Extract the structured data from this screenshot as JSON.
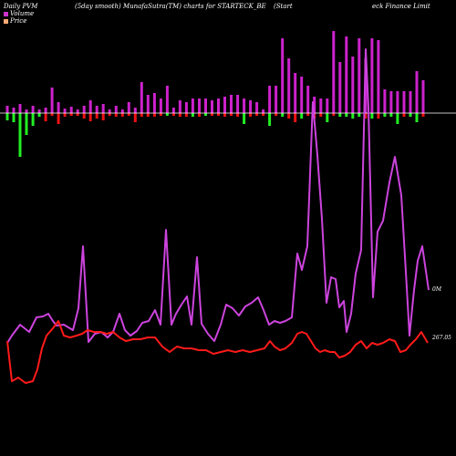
{
  "header": {
    "left": "Daily PVM",
    "mid": "(5day smooth) MunafaSutra(TM) charts for STARTECK_BE",
    "right1": "(Start",
    "right2": "eck Finance  Limit"
  },
  "legend": [
    {
      "label": "Volume",
      "color": "#cc33cc"
    },
    {
      "label": "Price",
      "color": "#ffaa77"
    }
  ],
  "axis": {
    "volume_zero_label": "0M",
    "price_label": "267.05"
  },
  "colors": {
    "volume_up": "#cc22cc",
    "volume_down_green": "#22ee22",
    "volume_down_red": "#ee1111",
    "volume_line": "#cc44dd",
    "price_line": "#ff1a1a",
    "baseline": "#ffffff"
  },
  "chart_data": {
    "type": "bar",
    "bars": [
      {
        "up": 8,
        "down": 8,
        "color": "green"
      },
      {
        "up": 6,
        "down": 10,
        "color": "green"
      },
      {
        "up": 10,
        "down": 48,
        "color": "green"
      },
      {
        "up": 4,
        "down": 24,
        "color": "green"
      },
      {
        "up": 8,
        "down": 14,
        "color": "green"
      },
      {
        "up": 4,
        "down": 4,
        "color": "green"
      },
      {
        "up": 6,
        "down": 9,
        "color": "red"
      },
      {
        "up": 28,
        "down": 3,
        "color": "red"
      },
      {
        "up": 12,
        "down": 12,
        "color": "red"
      },
      {
        "up": 5,
        "down": 4,
        "color": "red"
      },
      {
        "up": 7,
        "down": 3,
        "color": "red"
      },
      {
        "up": 4,
        "down": 3,
        "color": "red"
      },
      {
        "up": 8,
        "down": 6,
        "color": "red"
      },
      {
        "up": 14,
        "down": 9,
        "color": "red"
      },
      {
        "up": 8,
        "down": 6,
        "color": "red"
      },
      {
        "up": 10,
        "down": 8,
        "color": "red"
      },
      {
        "up": 4,
        "down": 3,
        "color": "red"
      },
      {
        "up": 8,
        "down": 4,
        "color": "red"
      },
      {
        "up": 4,
        "down": 4,
        "color": "red"
      },
      {
        "up": 12,
        "down": 3,
        "color": "red"
      },
      {
        "up": 6,
        "down": 10,
        "color": "red"
      },
      {
        "up": 34,
        "down": 4,
        "color": "red"
      },
      {
        "up": 20,
        "down": 4,
        "color": "red"
      },
      {
        "up": 22,
        "down": 4,
        "color": "red"
      },
      {
        "up": 16,
        "down": 3,
        "color": "red"
      },
      {
        "up": 30,
        "down": 3,
        "color": "green"
      },
      {
        "up": 6,
        "down": 3,
        "color": "red"
      },
      {
        "up": 14,
        "down": 4,
        "color": "red"
      },
      {
        "up": 12,
        "down": 4,
        "color": "red"
      },
      {
        "up": 16,
        "down": 4,
        "color": "green"
      },
      {
        "up": 16,
        "down": 4,
        "color": "red"
      },
      {
        "up": 16,
        "down": 3,
        "color": "green"
      },
      {
        "up": 14,
        "down": 3,
        "color": "red"
      },
      {
        "up": 16,
        "down": 3,
        "color": "red"
      },
      {
        "up": 18,
        "down": 4,
        "color": "red"
      },
      {
        "up": 20,
        "down": 3,
        "color": "red"
      },
      {
        "up": 20,
        "down": 4,
        "color": "red"
      },
      {
        "up": 16,
        "down": 12,
        "color": "green"
      },
      {
        "up": 14,
        "down": 4,
        "color": "red"
      },
      {
        "up": 12,
        "down": 3,
        "color": "red"
      },
      {
        "up": 4,
        "down": 3,
        "color": "red"
      },
      {
        "up": 30,
        "down": 14,
        "color": "green"
      },
      {
        "up": 30,
        "down": 3,
        "color": "red"
      },
      {
        "up": 82,
        "down": 4,
        "color": "green"
      },
      {
        "up": 60,
        "down": 6,
        "color": "red"
      },
      {
        "up": 44,
        "down": 10,
        "color": "red"
      },
      {
        "up": 40,
        "down": 6,
        "color": "green"
      },
      {
        "up": 30,
        "down": 3,
        "color": "red"
      },
      {
        "up": 18,
        "down": 6,
        "color": "red"
      },
      {
        "up": 16,
        "down": 4,
        "color": "red"
      },
      {
        "up": 16,
        "down": 10,
        "color": "green"
      },
      {
        "up": 90,
        "down": 3,
        "color": "red"
      },
      {
        "up": 56,
        "down": 4,
        "color": "green"
      },
      {
        "up": 84,
        "down": 4,
        "color": "green"
      },
      {
        "up": 62,
        "down": 6,
        "color": "green"
      },
      {
        "up": 82,
        "down": 4,
        "color": "green"
      },
      {
        "up": 60,
        "down": 6,
        "color": "red"
      },
      {
        "up": 82,
        "down": 6,
        "color": "green"
      },
      {
        "up": 80,
        "down": 6,
        "color": "red"
      },
      {
        "up": 26,
        "down": 4,
        "color": "green"
      },
      {
        "up": 24,
        "down": 4,
        "color": "green"
      },
      {
        "up": 24,
        "down": 12,
        "color": "green"
      },
      {
        "up": 24,
        "down": 4,
        "color": "red"
      },
      {
        "up": 24,
        "down": 4,
        "color": "green"
      },
      {
        "up": 46,
        "down": 10,
        "color": "green"
      },
      {
        "up": 36,
        "down": 4,
        "color": "red"
      }
    ],
    "volume_line": [
      [
        8,
        376
      ],
      [
        13,
        368
      ],
      [
        22,
        356
      ],
      [
        32,
        364
      ],
      [
        40,
        348
      ],
      [
        47,
        347
      ],
      [
        53,
        344
      ],
      [
        58,
        352
      ],
      [
        62,
        357
      ],
      [
        70,
        356
      ],
      [
        80,
        362
      ],
      [
        86,
        338
      ],
      [
        91,
        270
      ],
      [
        97,
        375
      ],
      [
        104,
        366
      ],
      [
        111,
        364
      ],
      [
        118,
        370
      ],
      [
        124,
        364
      ],
      [
        131,
        344
      ],
      [
        137,
        362
      ],
      [
        143,
        368
      ],
      [
        150,
        363
      ],
      [
        156,
        354
      ],
      [
        163,
        352
      ],
      [
        170,
        340
      ],
      [
        176,
        356
      ],
      [
        182,
        252
      ],
      [
        188,
        356
      ],
      [
        193,
        344
      ],
      [
        199,
        334
      ],
      [
        205,
        325
      ],
      [
        210,
        356
      ],
      [
        216,
        282
      ],
      [
        221,
        355
      ],
      [
        228,
        366
      ],
      [
        235,
        374
      ],
      [
        242,
        356
      ],
      [
        248,
        334
      ],
      [
        255,
        338
      ],
      [
        262,
        346
      ],
      [
        269,
        336
      ],
      [
        276,
        332
      ],
      [
        283,
        326
      ],
      [
        289,
        340
      ],
      [
        295,
        356
      ],
      [
        301,
        352
      ],
      [
        307,
        354
      ],
      [
        313,
        352
      ],
      [
        320,
        348
      ],
      [
        326,
        278
      ],
      [
        331,
        296
      ],
      [
        337,
        270
      ],
      [
        343,
        112
      ],
      [
        348,
        170
      ],
      [
        353,
        240
      ],
      [
        358,
        332
      ],
      [
        363,
        304
      ],
      [
        368,
        306
      ],
      [
        372,
        337
      ],
      [
        377,
        330
      ],
      [
        380,
        364
      ],
      [
        385,
        344
      ],
      [
        390,
        300
      ],
      [
        396,
        274
      ],
      [
        401,
        54
      ],
      [
        404,
        118
      ],
      [
        409,
        326
      ],
      [
        414,
        254
      ],
      [
        420,
        242
      ],
      [
        427,
        200
      ],
      [
        433,
        172
      ],
      [
        440,
        214
      ],
      [
        445,
        298
      ],
      [
        449,
        368
      ],
      [
        454,
        318
      ],
      [
        458,
        286
      ],
      [
        463,
        270
      ],
      [
        470,
        318
      ]
    ],
    "price_line": [
      [
        8,
        374
      ],
      [
        13,
        418
      ],
      [
        20,
        414
      ],
      [
        28,
        420
      ],
      [
        36,
        418
      ],
      [
        41,
        405
      ],
      [
        46,
        382
      ],
      [
        51,
        368
      ],
      [
        58,
        360
      ],
      [
        64,
        352
      ],
      [
        70,
        368
      ],
      [
        77,
        370
      ],
      [
        84,
        368
      ],
      [
        90,
        366
      ],
      [
        96,
        362
      ],
      [
        103,
        364
      ],
      [
        110,
        364
      ],
      [
        117,
        366
      ],
      [
        124,
        364
      ],
      [
        131,
        370
      ],
      [
        138,
        374
      ],
      [
        146,
        372
      ],
      [
        154,
        372
      ],
      [
        162,
        370
      ],
      [
        170,
        370
      ],
      [
        178,
        380
      ],
      [
        186,
        386
      ],
      [
        194,
        380
      ],
      [
        202,
        382
      ],
      [
        210,
        382
      ],
      [
        218,
        384
      ],
      [
        226,
        384
      ],
      [
        234,
        388
      ],
      [
        242,
        386
      ],
      [
        250,
        384
      ],
      [
        258,
        386
      ],
      [
        266,
        384
      ],
      [
        274,
        386
      ],
      [
        282,
        384
      ],
      [
        290,
        382
      ],
      [
        296,
        374
      ],
      [
        301,
        380
      ],
      [
        307,
        384
      ],
      [
        313,
        382
      ],
      [
        320,
        376
      ],
      [
        326,
        366
      ],
      [
        331,
        364
      ],
      [
        336,
        366
      ],
      [
        341,
        374
      ],
      [
        346,
        382
      ],
      [
        351,
        386
      ],
      [
        356,
        384
      ],
      [
        362,
        386
      ],
      [
        367,
        386
      ],
      [
        372,
        392
      ],
      [
        378,
        390
      ],
      [
        384,
        386
      ],
      [
        390,
        378
      ],
      [
        396,
        374
      ],
      [
        402,
        382
      ],
      [
        408,
        376
      ],
      [
        414,
        378
      ],
      [
        420,
        376
      ],
      [
        427,
        372
      ],
      [
        433,
        374
      ],
      [
        439,
        386
      ],
      [
        445,
        384
      ],
      [
        450,
        378
      ],
      [
        456,
        372
      ],
      [
        462,
        364
      ],
      [
        469,
        376
      ]
    ]
  }
}
